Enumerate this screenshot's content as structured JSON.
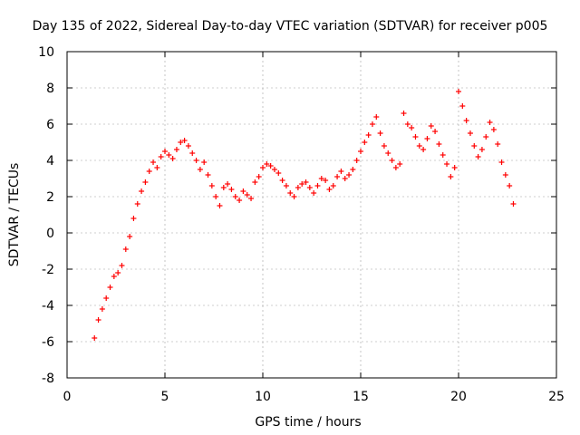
{
  "chart_data": {
    "type": "scatter",
    "title": "Day 135 of 2022, Sidereal Day-to-day VTEC variation (SDTVAR) for receiver p005",
    "xlabel": "GPS time / hours",
    "ylabel": "SDTVAR / TECUs",
    "xlim": [
      0,
      25
    ],
    "ylim": [
      -8,
      10
    ],
    "xticks": [
      "0",
      "5",
      "10",
      "15",
      "20",
      "25"
    ],
    "yticks": [
      "-8",
      "-6",
      "-4",
      "-2",
      "0",
      "2",
      "4",
      "6",
      "8",
      "10"
    ],
    "grid": true,
    "marker": "+",
    "series": [
      {
        "name": "SDTVAR",
        "color": "#ff0000",
        "x": [
          1.4,
          1.6,
          1.8,
          2.0,
          2.2,
          2.4,
          2.6,
          2.8,
          3.0,
          3.2,
          3.4,
          3.6,
          3.8,
          4.0,
          4.2,
          4.4,
          4.6,
          4.8,
          5.0,
          5.2,
          5.4,
          5.6,
          5.8,
          6.0,
          6.2,
          6.4,
          6.6,
          6.8,
          7.0,
          7.2,
          7.4,
          7.6,
          7.8,
          8.0,
          8.2,
          8.4,
          8.6,
          8.8,
          9.0,
          9.2,
          9.4,
          9.6,
          9.8,
          10.0,
          10.2,
          10.4,
          10.6,
          10.8,
          11.0,
          11.2,
          11.4,
          11.6,
          11.8,
          12.0,
          12.2,
          12.4,
          12.6,
          12.8,
          13.0,
          13.2,
          13.4,
          13.6,
          13.8,
          14.0,
          14.2,
          14.4,
          14.6,
          14.8,
          15.0,
          15.2,
          15.4,
          15.6,
          15.8,
          16.0,
          16.2,
          16.4,
          16.6,
          16.8,
          17.0,
          17.2,
          17.4,
          17.6,
          17.8,
          18.0,
          18.2,
          18.4,
          18.6,
          18.8,
          19.0,
          19.2,
          19.4,
          19.6,
          19.8,
          20.0,
          20.2,
          20.4,
          20.6,
          20.8,
          21.0,
          21.2,
          21.4,
          21.6,
          21.8,
          22.0,
          22.2,
          22.4,
          22.6,
          22.8
        ],
        "y": [
          -5.8,
          -4.8,
          -4.2,
          -3.6,
          -3.0,
          -2.4,
          -2.2,
          -1.8,
          -0.9,
          -0.2,
          0.8,
          1.6,
          2.3,
          2.8,
          3.4,
          3.9,
          3.6,
          4.2,
          4.5,
          4.3,
          4.1,
          4.6,
          5.0,
          5.1,
          4.8,
          4.4,
          4.0,
          3.5,
          3.9,
          3.2,
          2.6,
          2.0,
          1.5,
          2.5,
          2.7,
          2.4,
          2.0,
          1.8,
          2.3,
          2.1,
          1.9,
          2.8,
          3.1,
          3.6,
          3.8,
          3.7,
          3.5,
          3.3,
          2.9,
          2.6,
          2.2,
          2.0,
          2.5,
          2.7,
          2.8,
          2.5,
          2.2,
          2.6,
          3.0,
          2.9,
          2.4,
          2.6,
          3.1,
          3.4,
          3.0,
          3.2,
          3.5,
          4.0,
          4.5,
          5.0,
          5.4,
          6.0,
          6.4,
          5.5,
          4.8,
          4.4,
          4.0,
          3.6,
          3.8,
          6.6,
          6.0,
          5.8,
          5.3,
          4.8,
          4.6,
          5.2,
          5.9,
          5.6,
          4.9,
          4.3,
          3.8,
          3.1,
          3.6,
          7.8,
          7.0,
          6.2,
          5.5,
          4.8,
          4.2,
          4.6,
          5.3,
          6.1,
          5.7,
          4.9,
          3.9,
          3.2,
          2.6,
          1.6
        ]
      }
    ]
  }
}
